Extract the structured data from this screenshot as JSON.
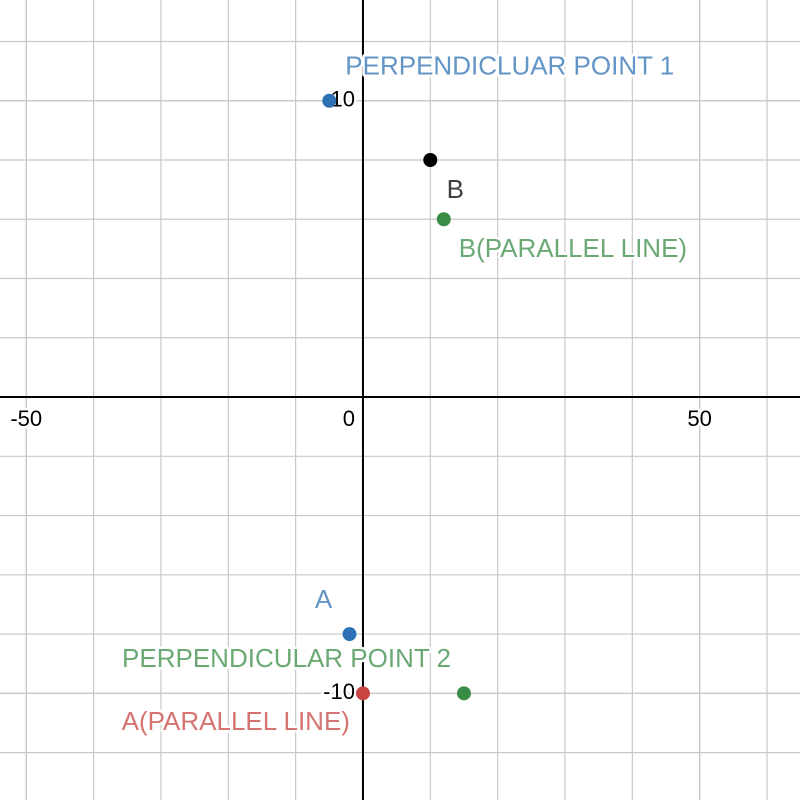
{
  "chart_data": {
    "type": "scatter",
    "xlim": [
      -53.9,
      64.9
    ],
    "ylim": [
      -13.6,
      13.4
    ],
    "xticks": [
      -50,
      0,
      50
    ],
    "yticks": [
      -10,
      10
    ],
    "xgrid": [
      -50,
      -40,
      -30,
      -20,
      -10,
      10,
      20,
      30,
      40,
      50,
      60
    ],
    "ygrid": [
      -12,
      -10,
      -8,
      -6,
      -4,
      -2,
      2,
      4,
      6,
      8,
      10,
      12
    ],
    "grid": true,
    "series": [
      {
        "name": "PERPENDICLUAR POINT 1",
        "color": "#2d70b3",
        "x": [
          -5
        ],
        "values": [
          10
        ]
      },
      {
        "name": "B",
        "color": "#000000",
        "x": [
          10
        ],
        "values": [
          8
        ]
      },
      {
        "name": "B(PARALLEL LINE)",
        "color": "#388c46",
        "x": [
          12
        ],
        "values": [
          6
        ]
      },
      {
        "name": "A",
        "color": "#2d70b3",
        "x": [
          -2
        ],
        "values": [
          -8
        ]
      },
      {
        "name": "PERPENDICULAR POINT 2",
        "color": "#388c46",
        "x": [
          15
        ],
        "values": [
          -10
        ]
      },
      {
        "name": "A(PARALLEL LINE)",
        "color": "#c74440",
        "x": [
          0
        ],
        "values": [
          -10
        ]
      }
    ]
  }
}
